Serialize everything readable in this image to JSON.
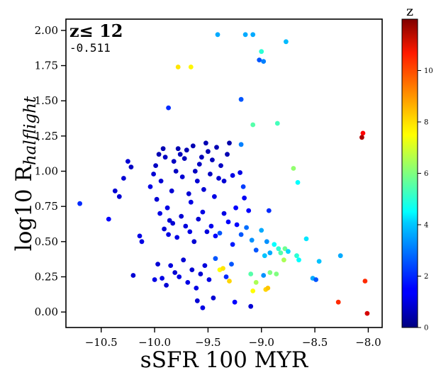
{
  "chart_data": {
    "type": "scatter",
    "title": "",
    "annotation_title": "z≤ 12",
    "annotation_value": "-0.511",
    "xlabel": "sSFR 100 MYR",
    "ylabel_main": "log10 R",
    "ylabel_sub": "halflight",
    "xlim": [
      -10.83,
      -7.87
    ],
    "ylim": [
      -0.11,
      2.08
    ],
    "xticks": [
      -10.5,
      -10.0,
      -9.5,
      -9.0,
      -8.5,
      -8.0
    ],
    "xtick_labels": [
      "−10.5",
      "−10.0",
      "−9.5",
      "−9.0",
      "−8.5",
      "−8.0"
    ],
    "yticks": [
      0.0,
      0.25,
      0.5,
      0.75,
      1.0,
      1.25,
      1.5,
      1.75,
      2.0
    ],
    "ytick_labels": [
      "0.00",
      "0.25",
      "0.50",
      "0.75",
      "1.00",
      "1.25",
      "1.50",
      "1.75",
      "2.00"
    ],
    "grid": false,
    "colormap": "jet",
    "colorbar": {
      "label": "z",
      "range": [
        0,
        12
      ],
      "ticks": [
        0,
        2,
        4,
        6,
        8,
        10
      ],
      "tick_labels": [
        "0",
        "2",
        "4",
        "6",
        "8",
        "10"
      ]
    },
    "points": [
      [
        -9.41,
        1.97,
        3.5
      ],
      [
        -9.15,
        1.97,
        3.5
      ],
      [
        -9.08,
        1.97,
        3.5
      ],
      [
        -8.77,
        1.92,
        3.7
      ],
      [
        -9.0,
        1.85,
        5.0
      ],
      [
        -9.02,
        1.79,
        2.5
      ],
      [
        -8.98,
        1.78,
        3.0
      ],
      [
        -9.78,
        1.74,
        7.8
      ],
      [
        -9.66,
        1.74,
        7.6
      ],
      [
        -9.19,
        1.51,
        2.5
      ],
      [
        -9.87,
        1.45,
        2.0
      ],
      [
        -9.08,
        1.33,
        5.5
      ],
      [
        -8.85,
        1.34,
        5.3
      ],
      [
        -9.19,
        1.19,
        3.0
      ],
      [
        -8.05,
        1.27,
        10.5
      ],
      [
        -8.06,
        1.24,
        11.5
      ],
      [
        -8.7,
        1.02,
        6.2
      ],
      [
        -8.66,
        0.92,
        4.5
      ],
      [
        -9.17,
        0.89,
        2.2
      ],
      [
        -10.7,
        0.77,
        2.0
      ],
      [
        -10.43,
        0.66,
        1.5
      ],
      [
        -10.37,
        0.86,
        1.0
      ],
      [
        -10.33,
        0.82,
        1.0
      ],
      [
        -10.29,
        0.95,
        1.0
      ],
      [
        -10.25,
        1.07,
        1.0
      ],
      [
        -10.22,
        1.03,
        0.8
      ],
      [
        -10.14,
        0.54,
        1.2
      ],
      [
        -10.12,
        0.5,
        1.2
      ],
      [
        -10.04,
        0.89,
        1.2
      ],
      [
        -10.01,
        0.98,
        1.0
      ],
      [
        -9.99,
        1.04,
        0.8
      ],
      [
        -9.96,
        1.12,
        0.6
      ],
      [
        -9.94,
        0.93,
        1.0
      ],
      [
        -9.92,
        1.16,
        0.6
      ],
      [
        -9.9,
        1.1,
        0.8
      ],
      [
        -9.88,
        0.74,
        1.2
      ],
      [
        -9.86,
        0.65,
        1.0
      ],
      [
        -9.84,
        0.86,
        1.0
      ],
      [
        -9.82,
        1.07,
        0.8
      ],
      [
        -9.8,
        1.0,
        0.8
      ],
      [
        -9.78,
        1.16,
        0.6
      ],
      [
        -9.76,
        1.12,
        0.7
      ],
      [
        -9.74,
        0.96,
        1.0
      ],
      [
        -9.72,
        1.09,
        0.7
      ],
      [
        -9.7,
        1.15,
        0.6
      ],
      [
        -9.68,
        0.84,
        1.0
      ],
      [
        -9.66,
        0.78,
        1.2
      ],
      [
        -9.64,
        1.18,
        0.6
      ],
      [
        -9.62,
        1.0,
        0.8
      ],
      [
        -9.6,
        0.93,
        1.0
      ],
      [
        -9.58,
        1.05,
        0.8
      ],
      [
        -9.56,
        1.1,
        0.7
      ],
      [
        -9.54,
        0.87,
        1.0
      ],
      [
        -9.52,
        1.2,
        0.6
      ],
      [
        -9.5,
        1.14,
        0.6
      ],
      [
        -9.48,
        0.98,
        0.8
      ],
      [
        -9.46,
        1.08,
        0.7
      ],
      [
        -9.44,
        0.82,
        1.2
      ],
      [
        -9.42,
        1.17,
        0.6
      ],
      [
        -9.4,
        0.95,
        1.0
      ],
      [
        -9.38,
        1.04,
        0.8
      ],
      [
        -9.35,
        0.93,
        1.0
      ],
      [
        -9.32,
        1.12,
        0.6
      ],
      [
        -9.3,
        1.2,
        0.5
      ],
      [
        -9.27,
        0.97,
        1.2
      ],
      [
        -9.24,
        0.74,
        1.5
      ],
      [
        -9.2,
        0.99,
        1.2
      ],
      [
        -9.16,
        0.81,
        1.4
      ],
      [
        -9.12,
        0.72,
        1.5
      ],
      [
        -9.98,
        0.8,
        1.0
      ],
      [
        -9.95,
        0.7,
        1.2
      ],
      [
        -9.91,
        0.59,
        1.0
      ],
      [
        -9.87,
        0.55,
        1.2
      ],
      [
        -9.83,
        0.63,
        1.0
      ],
      [
        -9.79,
        0.53,
        1.2
      ],
      [
        -9.75,
        0.68,
        1.0
      ],
      [
        -9.71,
        0.61,
        1.1
      ],
      [
        -9.67,
        0.57,
        1.2
      ],
      [
        -9.63,
        0.5,
        1.0
      ],
      [
        -9.59,
        0.66,
        1.0
      ],
      [
        -9.55,
        0.71,
        1.2
      ],
      [
        -9.51,
        0.57,
        1.1
      ],
      [
        -9.47,
        0.61,
        1.3
      ],
      [
        -9.43,
        0.54,
        1.5
      ],
      [
        -9.39,
        0.56,
        2.5
      ],
      [
        -9.35,
        0.7,
        1.2
      ],
      [
        -9.31,
        0.64,
        1.5
      ],
      [
        -9.27,
        0.48,
        1.8
      ],
      [
        -9.23,
        0.62,
        1.5
      ],
      [
        -9.19,
        0.55,
        2.5
      ],
      [
        -9.14,
        0.6,
        2.8
      ],
      [
        -9.09,
        0.51,
        3.2
      ],
      [
        -9.05,
        0.44,
        2.5
      ],
      [
        -9.0,
        0.58,
        3.5
      ],
      [
        -8.97,
        0.4,
        3.8
      ],
      [
        -8.95,
        0.5,
        3.2
      ],
      [
        -8.93,
        0.72,
        2.0
      ],
      [
        -8.92,
        0.42,
        3.5
      ],
      [
        -8.88,
        0.48,
        4.5
      ],
      [
        -8.84,
        0.45,
        5.0
      ],
      [
        -8.82,
        0.42,
        5.5
      ],
      [
        -8.79,
        0.37,
        6.5
      ],
      [
        -8.78,
        0.45,
        5.8
      ],
      [
        -8.75,
        0.43,
        4.0
      ],
      [
        -8.67,
        0.4,
        5.0
      ],
      [
        -8.65,
        0.37,
        4.5
      ],
      [
        -8.58,
        0.52,
        4.2
      ],
      [
        -8.52,
        0.24,
        3.5
      ],
      [
        -8.49,
        0.23,
        2.5
      ],
      [
        -8.46,
        0.36,
        3.8
      ],
      [
        -8.26,
        0.4,
        3.5
      ],
      [
        -10.2,
        0.26,
        1.0
      ],
      [
        -10.0,
        0.23,
        1.2
      ],
      [
        -9.97,
        0.34,
        1.0
      ],
      [
        -9.93,
        0.24,
        1.2
      ],
      [
        -9.89,
        0.19,
        1.0
      ],
      [
        -9.85,
        0.33,
        1.1
      ],
      [
        -9.81,
        0.28,
        1.0
      ],
      [
        -9.77,
        0.25,
        1.2
      ],
      [
        -9.73,
        0.37,
        1.0
      ],
      [
        -9.69,
        0.21,
        1.2
      ],
      [
        -9.65,
        0.3,
        1.0
      ],
      [
        -9.61,
        0.17,
        1.2
      ],
      [
        -9.57,
        0.27,
        1.0
      ],
      [
        -9.53,
        0.33,
        1.1
      ],
      [
        -9.49,
        0.23,
        1.2
      ],
      [
        -9.45,
        0.1,
        1.0
      ],
      [
        -9.43,
        0.38,
        2.5
      ],
      [
        -9.39,
        0.3,
        7.5
      ],
      [
        -9.36,
        0.31,
        7.8
      ],
      [
        -9.33,
        0.25,
        2.0
      ],
      [
        -9.3,
        0.22,
        8.0
      ],
      [
        -9.28,
        0.34,
        2.5
      ],
      [
        -9.25,
        0.07,
        1.5
      ],
      [
        -9.1,
        0.27,
        5.5
      ],
      [
        -9.08,
        0.15,
        7.5
      ],
      [
        -9.05,
        0.21,
        6.5
      ],
      [
        -8.98,
        0.26,
        3.2
      ],
      [
        -8.96,
        0.16,
        8.0
      ],
      [
        -8.94,
        0.17,
        8.2
      ],
      [
        -8.92,
        0.28,
        6.0
      ],
      [
        -8.86,
        0.27,
        6.0
      ],
      [
        -9.6,
        0.08,
        1.0
      ],
      [
        -9.55,
        0.03,
        1.2
      ],
      [
        -9.1,
        0.04,
        1.0
      ],
      [
        -8.28,
        0.07,
        10.0
      ],
      [
        -8.03,
        0.22,
        10.0
      ],
      [
        -8.01,
        -0.01,
        11.0
      ]
    ]
  }
}
